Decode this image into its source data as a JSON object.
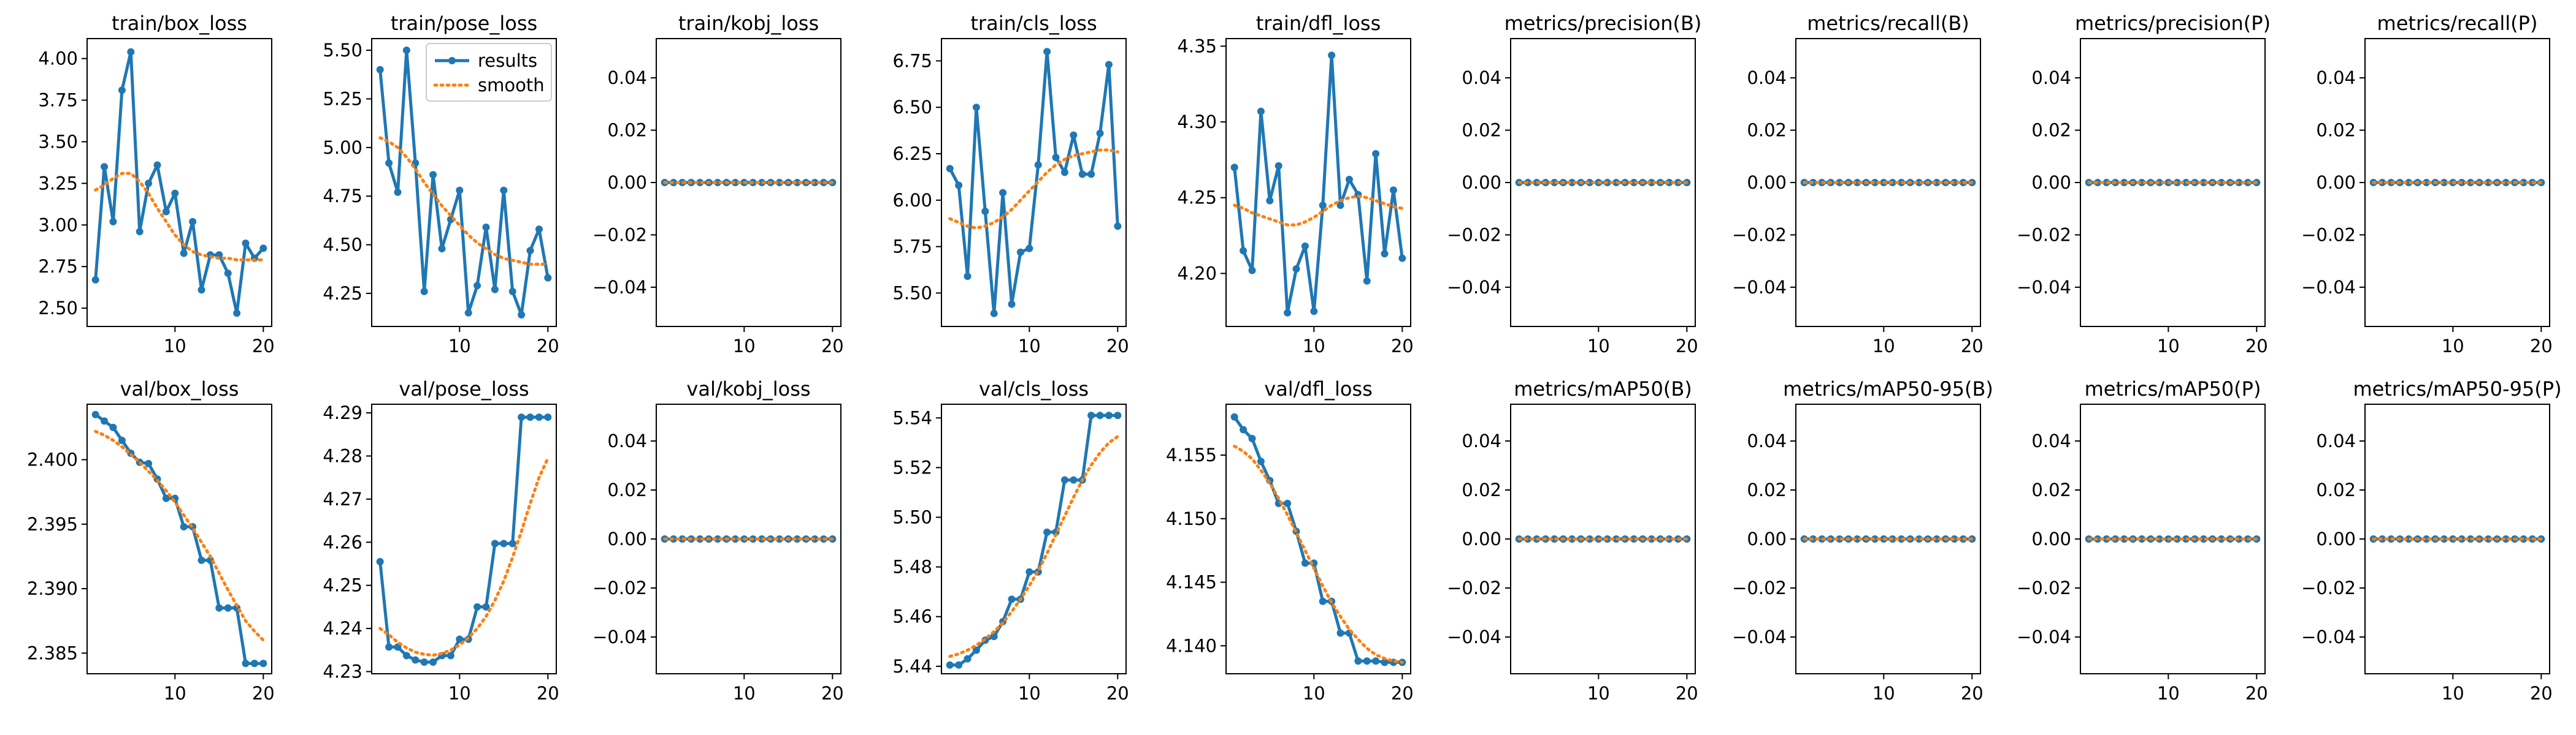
{
  "legend": {
    "results": "results",
    "smooth": "smooth"
  },
  "colors": {
    "results": "#1f77b4",
    "smooth": "#ff7f0e",
    "axes": "#000000"
  },
  "chart_data": [
    {
      "type": "line",
      "title": "train/box_loss",
      "x": [
        1,
        2,
        3,
        4,
        5,
        6,
        7,
        8,
        9,
        10,
        11,
        12,
        13,
        14,
        15,
        16,
        17,
        18,
        19,
        20
      ],
      "results": [
        2.67,
        3.35,
        3.02,
        3.81,
        4.04,
        2.96,
        3.25,
        3.36,
        3.08,
        3.19,
        2.83,
        3.02,
        2.61,
        2.82,
        2.82,
        2.71,
        2.47,
        2.89,
        2.8,
        2.86
      ],
      "smooth": [
        3.21,
        3.24,
        3.28,
        3.31,
        3.31,
        3.26,
        3.19,
        3.1,
        3.02,
        2.94,
        2.88,
        2.84,
        2.82,
        2.81,
        2.8,
        2.8,
        2.79,
        2.79,
        2.79,
        2.79
      ],
      "xticks": [
        10,
        20
      ],
      "yticks": [
        "2.50",
        "2.75",
        "3.00",
        "3.25",
        "3.50",
        "3.75",
        "4.00"
      ],
      "ylim": [
        2.39,
        4.12
      ]
    },
    {
      "type": "line",
      "title": "train/pose_loss",
      "x": [
        1,
        2,
        3,
        4,
        5,
        6,
        7,
        8,
        9,
        10,
        11,
        12,
        13,
        14,
        15,
        16,
        17,
        18,
        19,
        20
      ],
      "results": [
        5.4,
        4.92,
        4.77,
        5.5,
        4.92,
        4.26,
        4.86,
        4.48,
        4.63,
        4.78,
        4.15,
        4.29,
        4.59,
        4.27,
        4.78,
        4.26,
        4.14,
        4.47,
        4.58,
        4.33
      ],
      "smooth": [
        5.05,
        5.03,
        5.0,
        4.95,
        4.89,
        4.82,
        4.76,
        4.7,
        4.65,
        4.6,
        4.55,
        4.51,
        4.48,
        4.45,
        4.43,
        4.42,
        4.41,
        4.4,
        4.4,
        4.4
      ],
      "xticks": [
        10,
        20
      ],
      "yticks": [
        "4.25",
        "4.50",
        "4.75",
        "5.00",
        "5.25",
        "5.50"
      ],
      "ylim": [
        4.08,
        5.56
      ],
      "legend": "top-right"
    },
    {
      "type": "line",
      "title": "train/kobj_loss",
      "x": [
        1,
        2,
        3,
        4,
        5,
        6,
        7,
        8,
        9,
        10,
        11,
        12,
        13,
        14,
        15,
        16,
        17,
        18,
        19,
        20
      ],
      "results": [
        0,
        0,
        0,
        0,
        0,
        0,
        0,
        0,
        0,
        0,
        0,
        0,
        0,
        0,
        0,
        0,
        0,
        0,
        0,
        0
      ],
      "smooth": [
        0,
        0,
        0,
        0,
        0,
        0,
        0,
        0,
        0,
        0,
        0,
        0,
        0,
        0,
        0,
        0,
        0,
        0,
        0,
        0
      ],
      "xticks": [
        10,
        20
      ],
      "yticks": [
        "−0.04",
        "−0.02",
        "0.00",
        "0.02",
        "0.04"
      ],
      "ylim": [
        -0.055,
        0.055
      ]
    },
    {
      "type": "line",
      "title": "train/cls_loss",
      "x": [
        1,
        2,
        3,
        4,
        5,
        6,
        7,
        8,
        9,
        10,
        11,
        12,
        13,
        14,
        15,
        16,
        17,
        18,
        19,
        20
      ],
      "results": [
        6.17,
        6.08,
        5.59,
        6.5,
        5.94,
        5.39,
        6.04,
        5.44,
        5.72,
        5.74,
        6.19,
        6.8,
        6.23,
        6.15,
        6.35,
        6.14,
        6.14,
        6.36,
        6.73,
        5.86
      ],
      "smooth": [
        5.9,
        5.88,
        5.86,
        5.85,
        5.86,
        5.88,
        5.91,
        5.95,
        6.0,
        6.05,
        6.1,
        6.15,
        6.19,
        6.22,
        6.24,
        6.25,
        6.26,
        6.27,
        6.27,
        6.26
      ],
      "xticks": [
        10,
        20
      ],
      "yticks": [
        "5.50",
        "5.75",
        "6.00",
        "6.25",
        "6.50",
        "6.75"
      ],
      "ylim": [
        5.32,
        6.87
      ]
    },
    {
      "type": "line",
      "title": "train/dfl_loss",
      "x": [
        1,
        2,
        3,
        4,
        5,
        6,
        7,
        8,
        9,
        10,
        11,
        12,
        13,
        14,
        15,
        16,
        17,
        18,
        19,
        20
      ],
      "results": [
        4.27,
        4.215,
        4.202,
        4.307,
        4.248,
        4.271,
        4.174,
        4.203,
        4.218,
        4.175,
        4.245,
        4.344,
        4.245,
        4.262,
        4.252,
        4.195,
        4.279,
        4.213,
        4.255,
        4.21
      ],
      "smooth": [
        4.245,
        4.243,
        4.24,
        4.238,
        4.236,
        4.234,
        4.232,
        4.232,
        4.234,
        4.237,
        4.241,
        4.245,
        4.248,
        4.25,
        4.251,
        4.25,
        4.248,
        4.246,
        4.244,
        4.243
      ],
      "xticks": [
        10,
        20
      ],
      "yticks": [
        "4.20",
        "4.25",
        "4.30",
        "4.35"
      ],
      "ylim": [
        4.165,
        4.355
      ]
    },
    {
      "type": "line",
      "title": "metrics/precision(B)",
      "x": [
        1,
        2,
        3,
        4,
        5,
        6,
        7,
        8,
        9,
        10,
        11,
        12,
        13,
        14,
        15,
        16,
        17,
        18,
        19,
        20
      ],
      "results": [
        0,
        0,
        0,
        0,
        0,
        0,
        0,
        0,
        0,
        0,
        0,
        0,
        0,
        0,
        0,
        0,
        0,
        0,
        0,
        0
      ],
      "smooth": [
        0,
        0,
        0,
        0,
        0,
        0,
        0,
        0,
        0,
        0,
        0,
        0,
        0,
        0,
        0,
        0,
        0,
        0,
        0,
        0
      ],
      "xticks": [
        10,
        20
      ],
      "yticks": [
        "−0.04",
        "−0.02",
        "0.00",
        "0.02",
        "0.04"
      ],
      "ylim": [
        -0.055,
        0.055
      ]
    },
    {
      "type": "line",
      "title": "metrics/recall(B)",
      "x": [
        1,
        2,
        3,
        4,
        5,
        6,
        7,
        8,
        9,
        10,
        11,
        12,
        13,
        14,
        15,
        16,
        17,
        18,
        19,
        20
      ],
      "results": [
        0,
        0,
        0,
        0,
        0,
        0,
        0,
        0,
        0,
        0,
        0,
        0,
        0,
        0,
        0,
        0,
        0,
        0,
        0,
        0
      ],
      "smooth": [
        0,
        0,
        0,
        0,
        0,
        0,
        0,
        0,
        0,
        0,
        0,
        0,
        0,
        0,
        0,
        0,
        0,
        0,
        0,
        0
      ],
      "xticks": [
        10,
        20
      ],
      "yticks": [
        "−0.04",
        "−0.02",
        "0.00",
        "0.02",
        "0.04"
      ],
      "ylim": [
        -0.055,
        0.055
      ]
    },
    {
      "type": "line",
      "title": "metrics/precision(P)",
      "x": [
        1,
        2,
        3,
        4,
        5,
        6,
        7,
        8,
        9,
        10,
        11,
        12,
        13,
        14,
        15,
        16,
        17,
        18,
        19,
        20
      ],
      "results": [
        0,
        0,
        0,
        0,
        0,
        0,
        0,
        0,
        0,
        0,
        0,
        0,
        0,
        0,
        0,
        0,
        0,
        0,
        0,
        0
      ],
      "smooth": [
        0,
        0,
        0,
        0,
        0,
        0,
        0,
        0,
        0,
        0,
        0,
        0,
        0,
        0,
        0,
        0,
        0,
        0,
        0,
        0
      ],
      "xticks": [
        10,
        20
      ],
      "yticks": [
        "−0.04",
        "−0.02",
        "0.00",
        "0.02",
        "0.04"
      ],
      "ylim": [
        -0.055,
        0.055
      ]
    },
    {
      "type": "line",
      "title": "metrics/recall(P)",
      "x": [
        1,
        2,
        3,
        4,
        5,
        6,
        7,
        8,
        9,
        10,
        11,
        12,
        13,
        14,
        15,
        16,
        17,
        18,
        19,
        20
      ],
      "results": [
        0,
        0,
        0,
        0,
        0,
        0,
        0,
        0,
        0,
        0,
        0,
        0,
        0,
        0,
        0,
        0,
        0,
        0,
        0,
        0
      ],
      "smooth": [
        0,
        0,
        0,
        0,
        0,
        0,
        0,
        0,
        0,
        0,
        0,
        0,
        0,
        0,
        0,
        0,
        0,
        0,
        0,
        0
      ],
      "xticks": [
        10,
        20
      ],
      "yticks": [
        "−0.04",
        "−0.02",
        "0.00",
        "0.02",
        "0.04"
      ],
      "ylim": [
        -0.055,
        0.055
      ]
    },
    {
      "type": "line",
      "title": "val/box_loss",
      "x": [
        1,
        2,
        3,
        4,
        5,
        6,
        7,
        8,
        9,
        10,
        11,
        12,
        13,
        14,
        15,
        16,
        17,
        18,
        19,
        20
      ],
      "results": [
        2.4035,
        2.403,
        2.4025,
        2.4015,
        2.4005,
        2.3998,
        2.3997,
        2.3985,
        2.397,
        2.397,
        2.3948,
        2.3948,
        2.3922,
        2.3922,
        2.3885,
        2.3885,
        2.3885,
        2.3842,
        2.3842,
        2.3842
      ],
      "smooth": [
        2.4022,
        2.4019,
        2.4015,
        2.401,
        2.4004,
        2.3998,
        2.3991,
        2.3984,
        2.3976,
        2.3967,
        2.3957,
        2.3947,
        2.3936,
        2.3925,
        2.3912,
        2.3899,
        2.3887,
        2.3875,
        2.3867,
        2.386
      ],
      "xticks": [
        10,
        20
      ],
      "yticks": [
        "2.385",
        "2.390",
        "2.395",
        "2.400"
      ],
      "ylim": [
        2.3834,
        2.4043
      ]
    },
    {
      "type": "line",
      "title": "val/pose_loss",
      "x": [
        1,
        2,
        3,
        4,
        5,
        6,
        7,
        8,
        9,
        10,
        11,
        12,
        13,
        14,
        15,
        16,
        17,
        18,
        19,
        20
      ],
      "results": [
        4.2555,
        4.2357,
        4.2357,
        4.2337,
        4.2327,
        4.2322,
        4.2322,
        4.2337,
        4.2337,
        4.2375,
        4.2375,
        4.245,
        4.245,
        4.2597,
        4.2597,
        4.2597,
        4.289,
        4.289,
        4.289,
        4.289
      ],
      "smooth": [
        4.24,
        4.2385,
        4.2368,
        4.2355,
        4.2345,
        4.234,
        4.2338,
        4.2342,
        4.235,
        4.2362,
        4.2378,
        4.24,
        4.2428,
        4.2465,
        4.251,
        4.2565,
        4.2625,
        4.269,
        4.275,
        4.2795
      ],
      "xticks": [
        10,
        20
      ],
      "yticks": [
        "4.23",
        "4.24",
        "4.25",
        "4.26",
        "4.27",
        "4.28",
        "4.29"
      ],
      "ylim": [
        4.2295,
        4.292
      ]
    },
    {
      "type": "line",
      "title": "val/kobj_loss",
      "x": [
        1,
        2,
        3,
        4,
        5,
        6,
        7,
        8,
        9,
        10,
        11,
        12,
        13,
        14,
        15,
        16,
        17,
        18,
        19,
        20
      ],
      "results": [
        0,
        0,
        0,
        0,
        0,
        0,
        0,
        0,
        0,
        0,
        0,
        0,
        0,
        0,
        0,
        0,
        0,
        0,
        0,
        0
      ],
      "smooth": [
        0,
        0,
        0,
        0,
        0,
        0,
        0,
        0,
        0,
        0,
        0,
        0,
        0,
        0,
        0,
        0,
        0,
        0,
        0,
        0
      ],
      "xticks": [
        10,
        20
      ],
      "yticks": [
        "−0.04",
        "−0.02",
        "0.00",
        "0.02",
        "0.04"
      ],
      "ylim": [
        -0.055,
        0.055
      ]
    },
    {
      "type": "line",
      "title": "val/cls_loss",
      "x": [
        1,
        2,
        3,
        4,
        5,
        6,
        7,
        8,
        9,
        10,
        11,
        12,
        13,
        14,
        15,
        16,
        17,
        18,
        19,
        20
      ],
      "results": [
        5.4405,
        5.4405,
        5.443,
        5.4465,
        5.4505,
        5.452,
        5.458,
        5.467,
        5.467,
        5.478,
        5.478,
        5.494,
        5.494,
        5.515,
        5.515,
        5.515,
        5.541,
        5.541,
        5.541,
        5.541
      ],
      "smooth": [
        5.444,
        5.445,
        5.4465,
        5.4485,
        5.451,
        5.454,
        5.4575,
        5.462,
        5.467,
        5.4725,
        5.4785,
        5.4855,
        5.493,
        5.5005,
        5.508,
        5.515,
        5.521,
        5.526,
        5.53,
        5.5325
      ],
      "xticks": [
        10,
        20
      ],
      "yticks": [
        "5.44",
        "5.46",
        "5.48",
        "5.50",
        "5.52",
        "5.54"
      ],
      "ylim": [
        5.437,
        5.5455
      ]
    },
    {
      "type": "line",
      "title": "val/dfl_loss",
      "x": [
        1,
        2,
        3,
        4,
        5,
        6,
        7,
        8,
        9,
        10,
        11,
        12,
        13,
        14,
        15,
        16,
        17,
        18,
        19,
        20
      ],
      "results": [
        4.158,
        4.157,
        4.1563,
        4.1545,
        4.153,
        4.1512,
        4.1512,
        4.149,
        4.1465,
        4.1465,
        4.1435,
        4.1435,
        4.141,
        4.141,
        4.1388,
        4.1388,
        4.1388,
        4.1387,
        4.1387,
        4.1387
      ],
      "smooth": [
        4.1557,
        4.1553,
        4.1547,
        4.1538,
        4.1528,
        4.1516,
        4.1503,
        4.1489,
        4.1475,
        4.1461,
        4.1447,
        4.1434,
        4.1423,
        4.1413,
        4.1405,
        4.1398,
        4.1393,
        4.139,
        4.1388,
        4.1387
      ],
      "xticks": [
        10,
        20
      ],
      "yticks": [
        "4.140",
        "4.145",
        "4.150",
        "4.155"
      ],
      "ylim": [
        4.1378,
        4.159
      ]
    },
    {
      "type": "line",
      "title": "metrics/mAP50(B)",
      "x": [
        1,
        2,
        3,
        4,
        5,
        6,
        7,
        8,
        9,
        10,
        11,
        12,
        13,
        14,
        15,
        16,
        17,
        18,
        19,
        20
      ],
      "results": [
        0,
        0,
        0,
        0,
        0,
        0,
        0,
        0,
        0,
        0,
        0,
        0,
        0,
        0,
        0,
        0,
        0,
        0,
        0,
        0
      ],
      "smooth": [
        0,
        0,
        0,
        0,
        0,
        0,
        0,
        0,
        0,
        0,
        0,
        0,
        0,
        0,
        0,
        0,
        0,
        0,
        0,
        0
      ],
      "xticks": [
        10,
        20
      ],
      "yticks": [
        "−0.04",
        "−0.02",
        "0.00",
        "0.02",
        "0.04"
      ],
      "ylim": [
        -0.055,
        0.055
      ]
    },
    {
      "type": "line",
      "title": "metrics/mAP50-95(B)",
      "x": [
        1,
        2,
        3,
        4,
        5,
        6,
        7,
        8,
        9,
        10,
        11,
        12,
        13,
        14,
        15,
        16,
        17,
        18,
        19,
        20
      ],
      "results": [
        0,
        0,
        0,
        0,
        0,
        0,
        0,
        0,
        0,
        0,
        0,
        0,
        0,
        0,
        0,
        0,
        0,
        0,
        0,
        0
      ],
      "smooth": [
        0,
        0,
        0,
        0,
        0,
        0,
        0,
        0,
        0,
        0,
        0,
        0,
        0,
        0,
        0,
        0,
        0,
        0,
        0,
        0
      ],
      "xticks": [
        10,
        20
      ],
      "yticks": [
        "−0.04",
        "−0.02",
        "0.00",
        "0.02",
        "0.04"
      ],
      "ylim": [
        -0.055,
        0.055
      ]
    },
    {
      "type": "line",
      "title": "metrics/mAP50(P)",
      "x": [
        1,
        2,
        3,
        4,
        5,
        6,
        7,
        8,
        9,
        10,
        11,
        12,
        13,
        14,
        15,
        16,
        17,
        18,
        19,
        20
      ],
      "results": [
        0,
        0,
        0,
        0,
        0,
        0,
        0,
        0,
        0,
        0,
        0,
        0,
        0,
        0,
        0,
        0,
        0,
        0,
        0,
        0
      ],
      "smooth": [
        0,
        0,
        0,
        0,
        0,
        0,
        0,
        0,
        0,
        0,
        0,
        0,
        0,
        0,
        0,
        0,
        0,
        0,
        0,
        0
      ],
      "xticks": [
        10,
        20
      ],
      "yticks": [
        "−0.04",
        "−0.02",
        "0.00",
        "0.02",
        "0.04"
      ],
      "ylim": [
        -0.055,
        0.055
      ]
    },
    {
      "type": "line",
      "title": "metrics/mAP50-95(P)",
      "x": [
        1,
        2,
        3,
        4,
        5,
        6,
        7,
        8,
        9,
        10,
        11,
        12,
        13,
        14,
        15,
        16,
        17,
        18,
        19,
        20
      ],
      "results": [
        0,
        0,
        0,
        0,
        0,
        0,
        0,
        0,
        0,
        0,
        0,
        0,
        0,
        0,
        0,
        0,
        0,
        0,
        0,
        0
      ],
      "smooth": [
        0,
        0,
        0,
        0,
        0,
        0,
        0,
        0,
        0,
        0,
        0,
        0,
        0,
        0,
        0,
        0,
        0,
        0,
        0,
        0
      ],
      "xticks": [
        10,
        20
      ],
      "yticks": [
        "−0.04",
        "−0.02",
        "0.00",
        "0.02",
        "0.04"
      ],
      "ylim": [
        -0.055,
        0.055
      ]
    }
  ]
}
